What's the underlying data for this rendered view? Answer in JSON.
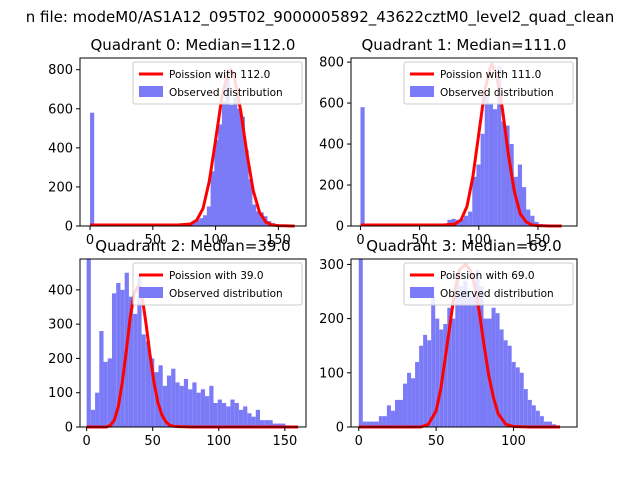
{
  "figure": {
    "suptitle": "n file: modeM0/AS1A12_095T02_9000005892_43622cztM0_level2_quad_clean"
  },
  "chart_data": [
    {
      "type": "bar",
      "title": "Quadrant 0: Median=112.0",
      "xlim": [
        -8,
        172
      ],
      "ylim": [
        0,
        860
      ],
      "xticks": [
        0,
        50,
        100,
        150
      ],
      "yticks": [
        0,
        200,
        400,
        600,
        800
      ],
      "bin_width": 3.33,
      "legend": {
        "placement": "top-right",
        "entries": [
          {
            "label": "Poission with 112.0",
            "kind": "line",
            "color": "#ff0000"
          },
          {
            "label": "Observed distribution",
            "kind": "patch",
            "color": "#7b7bf7"
          }
        ]
      },
      "observed": {
        "name": "Observed distribution",
        "x": [
          0,
          3,
          6,
          9,
          12,
          15,
          18,
          21,
          24,
          27,
          30,
          33,
          36,
          39,
          42,
          45,
          48,
          51,
          54,
          57,
          60,
          63,
          66,
          69,
          72,
          75,
          78,
          81,
          84,
          87,
          90,
          93,
          96,
          99,
          102,
          105,
          108,
          111,
          114,
          117,
          120,
          123,
          126,
          129,
          132,
          135,
          138,
          141,
          144,
          147,
          150,
          153,
          156,
          159,
          162
        ],
        "values": [
          580,
          10,
          10,
          8,
          8,
          8,
          8,
          8,
          8,
          8,
          8,
          8,
          8,
          8,
          8,
          8,
          8,
          8,
          8,
          8,
          8,
          8,
          8,
          10,
          10,
          10,
          12,
          20,
          30,
          40,
          55,
          100,
          280,
          440,
          520,
          640,
          780,
          620,
          660,
          600,
          560,
          390,
          240,
          110,
          75,
          70,
          50,
          25,
          15,
          10,
          5,
          5,
          5,
          3,
          2
        ]
      },
      "poisson": {
        "name": "Poission with 112.0",
        "mean": 112,
        "x": [
          0,
          60,
          70,
          80,
          85,
          90,
          95,
          100,
          105,
          110,
          112,
          115,
          120,
          125,
          130,
          135,
          140,
          145,
          150,
          155,
          160,
          163
        ],
        "values": [
          5,
          5,
          5,
          10,
          30,
          90,
          230,
          440,
          660,
          790,
          800,
          760,
          590,
          370,
          180,
          70,
          20,
          5,
          2,
          1,
          0,
          0
        ]
      }
    },
    {
      "type": "bar",
      "title": "Quadrant 1: Median=111.0",
      "xlim": [
        -8,
        183
      ],
      "ylim": [
        0,
        820
      ],
      "xticks": [
        0,
        50,
        100,
        150
      ],
      "yticks": [
        0,
        200,
        400,
        600,
        800
      ],
      "bin_width": 3.55,
      "legend": {
        "placement": "top-right",
        "entries": [
          {
            "label": "Poission with 111.0",
            "kind": "line",
            "color": "#ff0000"
          },
          {
            "label": "Observed distribution",
            "kind": "patch",
            "color": "#7b7bf7"
          }
        ]
      },
      "observed": {
        "name": "Observed distribution",
        "x": [
          0,
          3.5,
          7,
          10.5,
          14,
          17.5,
          21,
          24.5,
          28,
          31.5,
          35,
          38.5,
          42,
          45.5,
          49,
          52.5,
          56,
          59.5,
          63,
          66.5,
          70,
          73.5,
          77,
          80.5,
          84,
          87.5,
          91,
          94.5,
          98,
          101.5,
          105,
          108.5,
          112,
          115.5,
          119,
          122.5,
          126,
          129.5,
          133,
          136.5,
          140,
          143.5,
          147,
          150.5,
          154,
          157.5,
          161,
          164.5,
          168,
          171.5,
          175
        ],
        "values": [
          580,
          5,
          5,
          5,
          5,
          5,
          5,
          5,
          5,
          5,
          5,
          5,
          5,
          5,
          5,
          5,
          5,
          5,
          10,
          10,
          10,
          30,
          35,
          30,
          35,
          50,
          70,
          240,
          300,
          450,
          640,
          600,
          570,
          780,
          510,
          490,
          400,
          240,
          300,
          190,
          80,
          50,
          20,
          10,
          5,
          5,
          3,
          3,
          2,
          2,
          1
        ]
      },
      "poisson": {
        "name": "Poission with 111.0",
        "mean": 111,
        "x": [
          0,
          60,
          70,
          80,
          85,
          90,
          95,
          100,
          105,
          110,
          111,
          115,
          120,
          125,
          130,
          135,
          140,
          145,
          150,
          155,
          160,
          170
        ],
        "values": [
          5,
          5,
          5,
          10,
          30,
          95,
          240,
          450,
          660,
          780,
          790,
          740,
          570,
          350,
          170,
          60,
          20,
          5,
          2,
          1,
          0,
          0
        ]
      }
    },
    {
      "type": "bar",
      "title": "Quadrant 2: Median=39.0",
      "xlim": [
        -5,
        166
      ],
      "ylim": [
        0,
        490
      ],
      "xticks": [
        0,
        50,
        100,
        150
      ],
      "yticks": [
        0,
        100,
        200,
        300,
        400
      ],
      "bin_width": 3.2,
      "legend": {
        "placement": "top-right",
        "entries": [
          {
            "label": "Poission with 39.0",
            "kind": "line",
            "color": "#ff0000"
          },
          {
            "label": "Observed distribution",
            "kind": "patch",
            "color": "#7b7bf7"
          }
        ]
      },
      "observed": {
        "name": "Observed distribution",
        "x": [
          0,
          3.2,
          6.4,
          9.6,
          12.8,
          16,
          19.2,
          22.4,
          25.6,
          28.8,
          32,
          35.2,
          38.4,
          41.6,
          44.8,
          48,
          51.2,
          54.4,
          57.6,
          60.8,
          64,
          67.2,
          70.4,
          73.6,
          76.8,
          80,
          83.2,
          86.4,
          89.6,
          92.8,
          96,
          99.2,
          102.4,
          105.6,
          108.8,
          112,
          115.2,
          118.4,
          121.6,
          124.8,
          128,
          131.2,
          134.4,
          137.6,
          140.8,
          144,
          147.2,
          150.4,
          153.6,
          156.8
        ],
        "values": [
          490,
          50,
          100,
          280,
          190,
          200,
          390,
          420,
          400,
          450,
          380,
          330,
          440,
          270,
          250,
          200,
          160,
          180,
          120,
          150,
          170,
          130,
          120,
          140,
          110,
          130,
          100,
          110,
          90,
          120,
          70,
          80,
          70,
          60,
          80,
          70,
          50,
          60,
          40,
          30,
          50,
          20,
          20,
          20,
          10,
          10,
          10,
          5,
          3,
          2
        ]
      },
      "poisson": {
        "name": "Poission with 39.0",
        "mean": 39,
        "x": [
          0,
          15,
          18,
          21,
          24,
          27,
          30,
          33,
          36,
          39,
          42,
          45,
          48,
          51,
          54,
          57,
          60,
          63,
          66,
          70,
          80,
          100,
          130,
          160
        ],
        "values": [
          0,
          0,
          5,
          20,
          60,
          130,
          220,
          320,
          390,
          410,
          380,
          300,
          210,
          130,
          70,
          35,
          15,
          5,
          2,
          1,
          0,
          0,
          0,
          0
        ]
      }
    },
    {
      "type": "bar",
      "title": "Quadrant 3: Median=69.0",
      "xlim": [
        -5,
        141
      ],
      "ylim": [
        0,
        310
      ],
      "xticks": [
        0,
        50,
        100
      ],
      "yticks": [
        0,
        100,
        200,
        300
      ],
      "bin_width": 2.6,
      "legend": {
        "placement": "top-right",
        "entries": [
          {
            "label": "Poission with 69.0",
            "kind": "line",
            "color": "#ff0000"
          },
          {
            "label": "Observed distribution",
            "kind": "patch",
            "color": "#7b7bf7"
          }
        ]
      },
      "observed": {
        "name": "Observed distribution",
        "x": [
          0,
          2.6,
          5.2,
          7.8,
          10.4,
          13,
          15.6,
          18.2,
          20.8,
          23.4,
          26,
          28.6,
          31.2,
          33.8,
          36.4,
          39,
          41.6,
          44.2,
          46.8,
          49.4,
          52,
          54.6,
          57.2,
          59.8,
          62.4,
          65,
          67.6,
          70.2,
          72.8,
          75.4,
          78,
          80.6,
          83.2,
          85.8,
          88.4,
          91,
          93.6,
          96.2,
          98.8,
          101.4,
          104,
          106.6,
          109.2,
          111.8,
          114.4,
          117,
          119.6,
          122.2,
          124.8,
          127.4
        ],
        "values": [
          310,
          10,
          10,
          10,
          10,
          20,
          20,
          40,
          30,
          50,
          50,
          80,
          100,
          90,
          120,
          150,
          170,
          160,
          240,
          200,
          180,
          190,
          220,
          200,
          280,
          260,
          270,
          250,
          240,
          290,
          260,
          200,
          200,
          220,
          210,
          180,
          160,
          150,
          120,
          110,
          100,
          70,
          50,
          40,
          30,
          20,
          10,
          10,
          5,
          3
        ]
      },
      "poisson": {
        "name": "Poission with 69.0",
        "mean": 69,
        "x": [
          0,
          40,
          45,
          50,
          53,
          56,
          59,
          62,
          65,
          69,
          72,
          75,
          78,
          81,
          84,
          87,
          90,
          95,
          100,
          110,
          130
        ],
        "values": [
          0,
          0,
          5,
          30,
          70,
          130,
          190,
          250,
          290,
          300,
          290,
          260,
          210,
          150,
          95,
          55,
          25,
          5,
          1,
          0,
          0
        ]
      }
    }
  ]
}
